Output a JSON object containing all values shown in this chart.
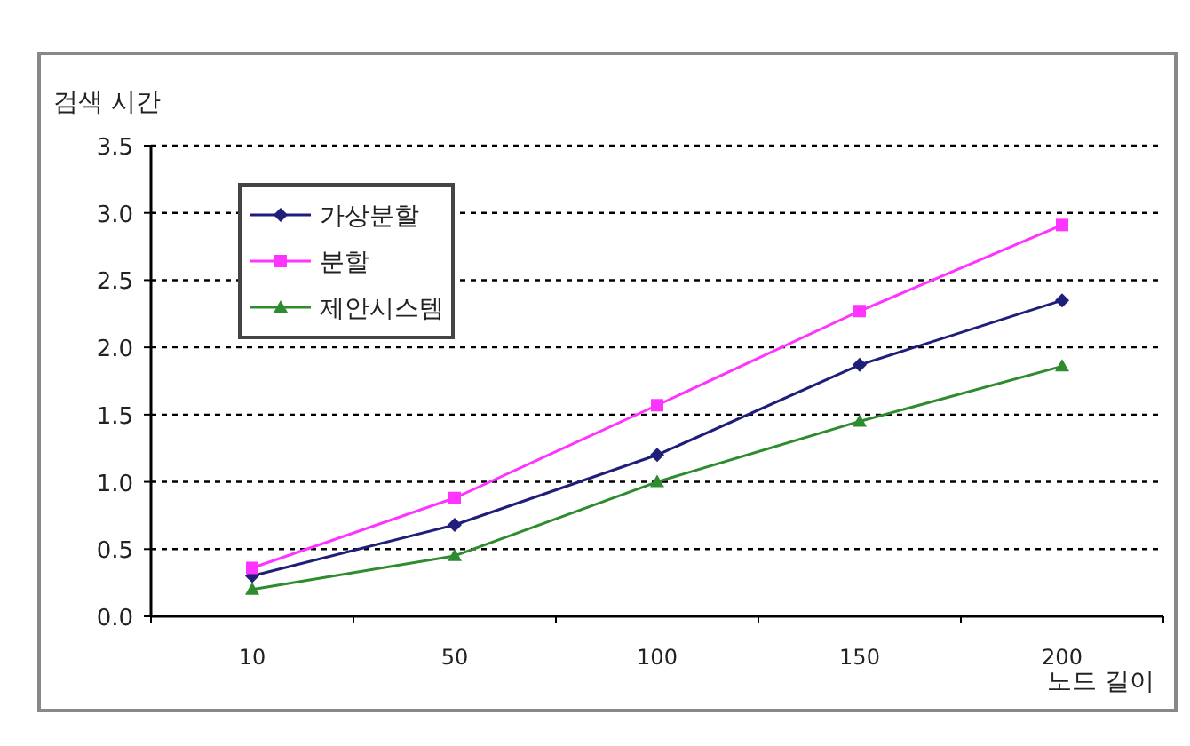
{
  "chart_data": {
    "type": "line",
    "ylabel": "검색 시간",
    "xlabel": "노드 길이",
    "categories": [
      "10",
      "50",
      "100",
      "150",
      "200"
    ],
    "series": [
      {
        "name": "가상분할",
        "color": "#1f1f7a",
        "marker": "diamond",
        "values": [
          0.3,
          0.68,
          1.2,
          1.87,
          2.35
        ]
      },
      {
        "name": "분할",
        "color": "#ff33ff",
        "marker": "square",
        "values": [
          0.36,
          0.88,
          1.57,
          2.27,
          2.91
        ]
      },
      {
        "name": "제안시스템",
        "color": "#2e8b2e",
        "marker": "triangle",
        "values": [
          0.2,
          0.45,
          1.0,
          1.45,
          1.86
        ]
      }
    ],
    "ylim": [
      0,
      3.5
    ],
    "yticks": [
      {
        "value": 0,
        "label": "0.0"
      },
      0.5,
      {
        "value": 1,
        "label": "1.0"
      },
      1.5,
      {
        "value": 2,
        "label": "2.0"
      },
      2.5,
      {
        "value": 3,
        "label": "3.0"
      },
      3.5
    ],
    "grid": "y",
    "legend": "top left",
    "line_style": "solid"
  }
}
